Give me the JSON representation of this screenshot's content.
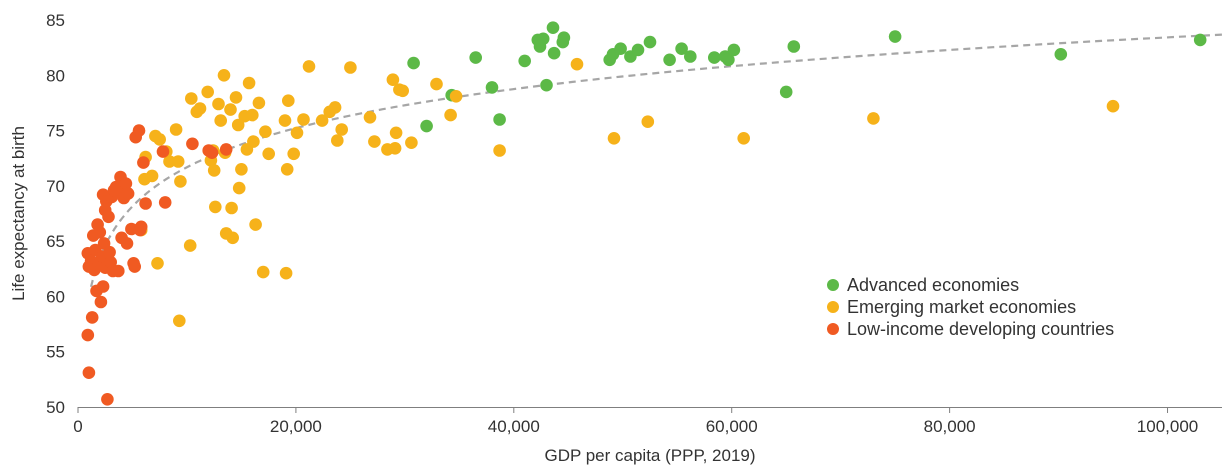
{
  "chart_data": {
    "type": "scatter",
    "title": "",
    "xlabel": "GDP per capita (PPP, 2019)",
    "ylabel": "Life expectancy at birth",
    "xlim": [
      0,
      105000
    ],
    "ylim": [
      50,
      85
    ],
    "x_ticks": [
      0,
      20000,
      40000,
      60000,
      80000,
      100000
    ],
    "x_tick_labels": [
      "0",
      "20,000",
      "40,000",
      "60,000",
      "80,000",
      "100,000"
    ],
    "y_ticks": [
      50,
      55,
      60,
      65,
      70,
      75,
      80,
      85
    ],
    "y_tick_labels": [
      "50",
      "55",
      "60",
      "65",
      "70",
      "75",
      "80",
      "85"
    ],
    "grid": false,
    "legend_position": "lower-right",
    "trendline": {
      "style": "dashed",
      "color": "#a6a6a6",
      "form": "logarithmic"
    },
    "series": [
      {
        "name": "Advanced economies",
        "color": "#5cb947",
        "points": [
          [
            30800,
            81.1
          ],
          [
            32000,
            75.4
          ],
          [
            34300,
            78.2
          ],
          [
            36500,
            81.6
          ],
          [
            38000,
            78.9
          ],
          [
            38700,
            76.0
          ],
          [
            41000,
            81.3
          ],
          [
            42200,
            83.2
          ],
          [
            42400,
            82.6
          ],
          [
            42700,
            83.3
          ],
          [
            43000,
            79.1
          ],
          [
            43600,
            84.3
          ],
          [
            43700,
            82.0
          ],
          [
            44500,
            83.0
          ],
          [
            44600,
            83.4
          ],
          [
            48800,
            81.4
          ],
          [
            49100,
            81.9
          ],
          [
            49800,
            82.4
          ],
          [
            50700,
            81.7
          ],
          [
            51400,
            82.3
          ],
          [
            52500,
            83.0
          ],
          [
            54300,
            81.4
          ],
          [
            55400,
            82.4
          ],
          [
            56200,
            81.7
          ],
          [
            58400,
            81.6
          ],
          [
            59400,
            81.7
          ],
          [
            59700,
            81.4
          ],
          [
            60200,
            82.3
          ],
          [
            65000,
            78.5
          ],
          [
            65700,
            82.6
          ],
          [
            75000,
            83.5
          ],
          [
            90200,
            81.9
          ],
          [
            103000,
            83.2
          ]
        ]
      },
      {
        "name": "Emerging market economies",
        "color": "#f6b21a",
        "points": [
          [
            5800,
            66.0
          ],
          [
            6100,
            70.6
          ],
          [
            6200,
            72.6
          ],
          [
            6800,
            70.9
          ],
          [
            7100,
            74.5
          ],
          [
            7300,
            63.0
          ],
          [
            7500,
            74.2
          ],
          [
            8100,
            73.1
          ],
          [
            8400,
            72.2
          ],
          [
            9000,
            75.1
          ],
          [
            9200,
            72.2
          ],
          [
            9300,
            57.8
          ],
          [
            9400,
            70.4
          ],
          [
            10300,
            64.6
          ],
          [
            10400,
            77.9
          ],
          [
            10900,
            76.7
          ],
          [
            11200,
            77.0
          ],
          [
            11900,
            78.5
          ],
          [
            12200,
            72.3
          ],
          [
            12400,
            73.2
          ],
          [
            12500,
            71.4
          ],
          [
            12600,
            68.1
          ],
          [
            12900,
            77.4
          ],
          [
            13100,
            75.9
          ],
          [
            13400,
            80.0
          ],
          [
            13500,
            73.0
          ],
          [
            13600,
            65.7
          ],
          [
            14000,
            76.9
          ],
          [
            14100,
            68.0
          ],
          [
            14200,
            65.3
          ],
          [
            14500,
            78.0
          ],
          [
            14700,
            75.5
          ],
          [
            14800,
            69.8
          ],
          [
            15000,
            71.5
          ],
          [
            15300,
            76.3
          ],
          [
            15500,
            73.3
          ],
          [
            15700,
            79.3
          ],
          [
            16000,
            76.4
          ],
          [
            16100,
            74.0
          ],
          [
            16300,
            66.5
          ],
          [
            16600,
            77.5
          ],
          [
            17000,
            62.2
          ],
          [
            17200,
            74.9
          ],
          [
            17500,
            72.9
          ],
          [
            19000,
            75.9
          ],
          [
            19100,
            62.1
          ],
          [
            19200,
            71.5
          ],
          [
            19300,
            77.7
          ],
          [
            19800,
            72.9
          ],
          [
            20100,
            74.8
          ],
          [
            20700,
            76.0
          ],
          [
            21200,
            80.8
          ],
          [
            22400,
            75.9
          ],
          [
            23100,
            76.7
          ],
          [
            23600,
            77.1
          ],
          [
            23800,
            74.1
          ],
          [
            24200,
            75.1
          ],
          [
            25000,
            80.7
          ],
          [
            26800,
            76.2
          ],
          [
            27200,
            74.0
          ],
          [
            28400,
            73.3
          ],
          [
            28900,
            79.6
          ],
          [
            29100,
            73.4
          ],
          [
            29200,
            74.8
          ],
          [
            29500,
            78.7
          ],
          [
            29800,
            78.6
          ],
          [
            30600,
            73.9
          ],
          [
            32900,
            79.2
          ],
          [
            34200,
            76.4
          ],
          [
            34700,
            78.1
          ],
          [
            38700,
            73.2
          ],
          [
            45800,
            81.0
          ],
          [
            49200,
            74.3
          ],
          [
            52300,
            75.8
          ],
          [
            61100,
            74.3
          ],
          [
            73000,
            76.1
          ],
          [
            95000,
            77.2
          ]
        ]
      },
      {
        "name": "Low-income developing countries",
        "color": "#f05a22",
        "points": [
          [
            900,
            63.9
          ],
          [
            900,
            56.5
          ],
          [
            1000,
            62.7
          ],
          [
            1000,
            53.1
          ],
          [
            1200,
            63.2
          ],
          [
            1300,
            58.1
          ],
          [
            1400,
            65.5
          ],
          [
            1500,
            62.4
          ],
          [
            1600,
            64.2
          ],
          [
            1700,
            60.5
          ],
          [
            1800,
            66.5
          ],
          [
            1900,
            62.9
          ],
          [
            2000,
            65.8
          ],
          [
            2100,
            59.5
          ],
          [
            2200,
            63.6
          ],
          [
            2300,
            60.9
          ],
          [
            2300,
            69.2
          ],
          [
            2400,
            64.8
          ],
          [
            2500,
            67.8
          ],
          [
            2500,
            62.6
          ],
          [
            2600,
            68.6
          ],
          [
            2700,
            50.7
          ],
          [
            2800,
            67.2
          ],
          [
            2900,
            64.0
          ],
          [
            3000,
            63.1
          ],
          [
            3100,
            69.0
          ],
          [
            3200,
            62.3
          ],
          [
            3300,
            69.6
          ],
          [
            3500,
            69.9
          ],
          [
            3700,
            62.3
          ],
          [
            3900,
            70.8
          ],
          [
            4000,
            65.3
          ],
          [
            4100,
            69.4
          ],
          [
            4200,
            68.9
          ],
          [
            4400,
            70.2
          ],
          [
            4500,
            64.8
          ],
          [
            4600,
            69.3
          ],
          [
            4900,
            66.1
          ],
          [
            5100,
            63.0
          ],
          [
            5200,
            62.7
          ],
          [
            5300,
            74.4
          ],
          [
            5600,
            75.0
          ],
          [
            5700,
            66.0
          ],
          [
            5800,
            66.3
          ],
          [
            6000,
            72.1
          ],
          [
            6200,
            68.4
          ],
          [
            7800,
            73.1
          ],
          [
            8000,
            68.5
          ],
          [
            10500,
            73.8
          ],
          [
            12000,
            73.2
          ],
          [
            12300,
            73.0
          ],
          [
            13600,
            73.3
          ]
        ]
      }
    ]
  }
}
